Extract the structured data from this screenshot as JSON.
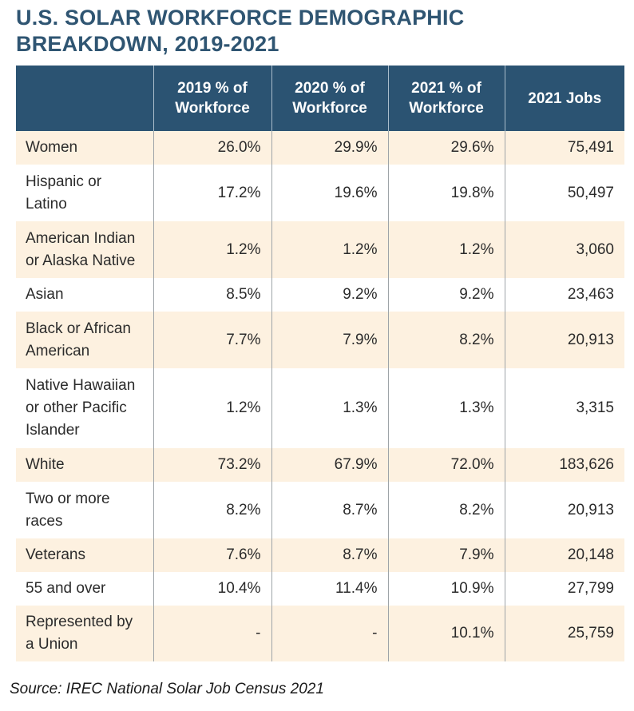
{
  "title": {
    "line1": "U.S. SOLAR WORKFORCE DEMOGRAPHIC",
    "line2": "BREAKDOWN, 2019-2021"
  },
  "table": {
    "headers": [
      {
        "line1": "",
        "line2": ""
      },
      {
        "line1": "2019 % of",
        "line2": "Workforce"
      },
      {
        "line1": "2020 % of",
        "line2": "Workforce"
      },
      {
        "line1": "2021 % of",
        "line2": "Workforce"
      },
      {
        "line1": "2021 Jobs",
        "line2": ""
      }
    ],
    "rows": [
      {
        "label": "Women",
        "y2019": "26.0%",
        "y2020": "29.9%",
        "y2021": "29.6%",
        "jobs": "75,491"
      },
      {
        "label": "Hispanic or Latino",
        "y2019": "17.2%",
        "y2020": "19.6%",
        "y2021": "19.8%",
        "jobs": "50,497"
      },
      {
        "label": "American Indian or Alaska Native",
        "y2019": "1.2%",
        "y2020": "1.2%",
        "y2021": "1.2%",
        "jobs": "3,060"
      },
      {
        "label": "Asian",
        "y2019": "8.5%",
        "y2020": "9.2%",
        "y2021": "9.2%",
        "jobs": "23,463"
      },
      {
        "label": "Black or African American",
        "y2019": "7.7%",
        "y2020": "7.9%",
        "y2021": "8.2%",
        "jobs": "20,913"
      },
      {
        "label": "Native Hawaiian or other Pacific Islander",
        "y2019": "1.2%",
        "y2020": "1.3%",
        "y2021": "1.3%",
        "jobs": "3,315"
      },
      {
        "label": "White",
        "y2019": "73.2%",
        "y2020": "67.9%",
        "y2021": "72.0%",
        "jobs": "183,626"
      },
      {
        "label": "Two or more races",
        "y2019": "8.2%",
        "y2020": "8.7%",
        "y2021": "8.2%",
        "jobs": "20,913"
      },
      {
        "label": "Veterans",
        "y2019": "7.6%",
        "y2020": "8.7%",
        "y2021": "7.9%",
        "jobs": "20,148"
      },
      {
        "label": "55 and over",
        "y2019": "10.4%",
        "y2020": "11.4%",
        "y2021": "10.9%",
        "jobs": "27,799"
      },
      {
        "label": "Represented by a Union",
        "y2019": "-",
        "y2020": "-",
        "y2021": "10.1%",
        "jobs": "25,759"
      }
    ]
  },
  "source": "Source: IREC National Solar Job Census 2021",
  "colors": {
    "title": "#2f5572",
    "header_bg": "#2b5372",
    "header_text": "#ffffff",
    "row_shade": "#fdf1e0",
    "row_plain": "#ffffff"
  }
}
